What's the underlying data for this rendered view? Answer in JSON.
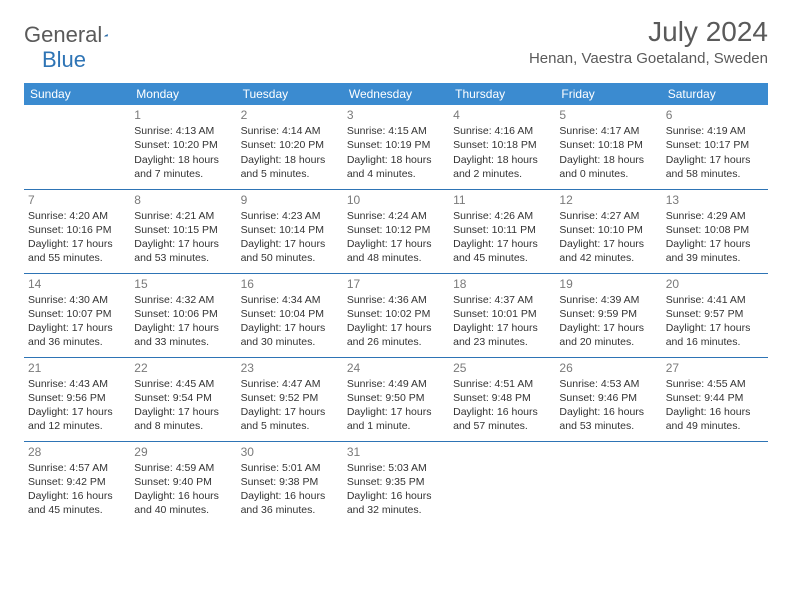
{
  "logo": {
    "text_general": "General",
    "text_blue": "Blue"
  },
  "header": {
    "month_title": "July 2024",
    "location": "Henan, Vaestra Goetaland, Sweden"
  },
  "colors": {
    "header_bg": "#3b8bd0",
    "header_text": "#ffffff",
    "border": "#2e74b5",
    "daynum": "#7a7a7a",
    "body_text": "#333333",
    "logo_gray": "#5a5a5a",
    "logo_blue": "#2e74b5",
    "background": "#ffffff"
  },
  "typography": {
    "month_title_fontsize": 28,
    "location_fontsize": 15,
    "weekday_fontsize": 12,
    "daynum_fontsize": 12,
    "cell_fontsize": 10.5
  },
  "calendar": {
    "type": "table",
    "columns": [
      "Sunday",
      "Monday",
      "Tuesday",
      "Wednesday",
      "Thursday",
      "Friday",
      "Saturday"
    ],
    "weeks": [
      [
        null,
        {
          "day": "1",
          "sunrise": "Sunrise: 4:13 AM",
          "sunset": "Sunset: 10:20 PM",
          "daylight1": "Daylight: 18 hours",
          "daylight2": "and 7 minutes."
        },
        {
          "day": "2",
          "sunrise": "Sunrise: 4:14 AM",
          "sunset": "Sunset: 10:20 PM",
          "daylight1": "Daylight: 18 hours",
          "daylight2": "and 5 minutes."
        },
        {
          "day": "3",
          "sunrise": "Sunrise: 4:15 AM",
          "sunset": "Sunset: 10:19 PM",
          "daylight1": "Daylight: 18 hours",
          "daylight2": "and 4 minutes."
        },
        {
          "day": "4",
          "sunrise": "Sunrise: 4:16 AM",
          "sunset": "Sunset: 10:18 PM",
          "daylight1": "Daylight: 18 hours",
          "daylight2": "and 2 minutes."
        },
        {
          "day": "5",
          "sunrise": "Sunrise: 4:17 AM",
          "sunset": "Sunset: 10:18 PM",
          "daylight1": "Daylight: 18 hours",
          "daylight2": "and 0 minutes."
        },
        {
          "day": "6",
          "sunrise": "Sunrise: 4:19 AM",
          "sunset": "Sunset: 10:17 PM",
          "daylight1": "Daylight: 17 hours",
          "daylight2": "and 58 minutes."
        }
      ],
      [
        {
          "day": "7",
          "sunrise": "Sunrise: 4:20 AM",
          "sunset": "Sunset: 10:16 PM",
          "daylight1": "Daylight: 17 hours",
          "daylight2": "and 55 minutes."
        },
        {
          "day": "8",
          "sunrise": "Sunrise: 4:21 AM",
          "sunset": "Sunset: 10:15 PM",
          "daylight1": "Daylight: 17 hours",
          "daylight2": "and 53 minutes."
        },
        {
          "day": "9",
          "sunrise": "Sunrise: 4:23 AM",
          "sunset": "Sunset: 10:14 PM",
          "daylight1": "Daylight: 17 hours",
          "daylight2": "and 50 minutes."
        },
        {
          "day": "10",
          "sunrise": "Sunrise: 4:24 AM",
          "sunset": "Sunset: 10:12 PM",
          "daylight1": "Daylight: 17 hours",
          "daylight2": "and 48 minutes."
        },
        {
          "day": "11",
          "sunrise": "Sunrise: 4:26 AM",
          "sunset": "Sunset: 10:11 PM",
          "daylight1": "Daylight: 17 hours",
          "daylight2": "and 45 minutes."
        },
        {
          "day": "12",
          "sunrise": "Sunrise: 4:27 AM",
          "sunset": "Sunset: 10:10 PM",
          "daylight1": "Daylight: 17 hours",
          "daylight2": "and 42 minutes."
        },
        {
          "day": "13",
          "sunrise": "Sunrise: 4:29 AM",
          "sunset": "Sunset: 10:08 PM",
          "daylight1": "Daylight: 17 hours",
          "daylight2": "and 39 minutes."
        }
      ],
      [
        {
          "day": "14",
          "sunrise": "Sunrise: 4:30 AM",
          "sunset": "Sunset: 10:07 PM",
          "daylight1": "Daylight: 17 hours",
          "daylight2": "and 36 minutes."
        },
        {
          "day": "15",
          "sunrise": "Sunrise: 4:32 AM",
          "sunset": "Sunset: 10:06 PM",
          "daylight1": "Daylight: 17 hours",
          "daylight2": "and 33 minutes."
        },
        {
          "day": "16",
          "sunrise": "Sunrise: 4:34 AM",
          "sunset": "Sunset: 10:04 PM",
          "daylight1": "Daylight: 17 hours",
          "daylight2": "and 30 minutes."
        },
        {
          "day": "17",
          "sunrise": "Sunrise: 4:36 AM",
          "sunset": "Sunset: 10:02 PM",
          "daylight1": "Daylight: 17 hours",
          "daylight2": "and 26 minutes."
        },
        {
          "day": "18",
          "sunrise": "Sunrise: 4:37 AM",
          "sunset": "Sunset: 10:01 PM",
          "daylight1": "Daylight: 17 hours",
          "daylight2": "and 23 minutes."
        },
        {
          "day": "19",
          "sunrise": "Sunrise: 4:39 AM",
          "sunset": "Sunset: 9:59 PM",
          "daylight1": "Daylight: 17 hours",
          "daylight2": "and 20 minutes."
        },
        {
          "day": "20",
          "sunrise": "Sunrise: 4:41 AM",
          "sunset": "Sunset: 9:57 PM",
          "daylight1": "Daylight: 17 hours",
          "daylight2": "and 16 minutes."
        }
      ],
      [
        {
          "day": "21",
          "sunrise": "Sunrise: 4:43 AM",
          "sunset": "Sunset: 9:56 PM",
          "daylight1": "Daylight: 17 hours",
          "daylight2": "and 12 minutes."
        },
        {
          "day": "22",
          "sunrise": "Sunrise: 4:45 AM",
          "sunset": "Sunset: 9:54 PM",
          "daylight1": "Daylight: 17 hours",
          "daylight2": "and 8 minutes."
        },
        {
          "day": "23",
          "sunrise": "Sunrise: 4:47 AM",
          "sunset": "Sunset: 9:52 PM",
          "daylight1": "Daylight: 17 hours",
          "daylight2": "and 5 minutes."
        },
        {
          "day": "24",
          "sunrise": "Sunrise: 4:49 AM",
          "sunset": "Sunset: 9:50 PM",
          "daylight1": "Daylight: 17 hours",
          "daylight2": "and 1 minute."
        },
        {
          "day": "25",
          "sunrise": "Sunrise: 4:51 AM",
          "sunset": "Sunset: 9:48 PM",
          "daylight1": "Daylight: 16 hours",
          "daylight2": "and 57 minutes."
        },
        {
          "day": "26",
          "sunrise": "Sunrise: 4:53 AM",
          "sunset": "Sunset: 9:46 PM",
          "daylight1": "Daylight: 16 hours",
          "daylight2": "and 53 minutes."
        },
        {
          "day": "27",
          "sunrise": "Sunrise: 4:55 AM",
          "sunset": "Sunset: 9:44 PM",
          "daylight1": "Daylight: 16 hours",
          "daylight2": "and 49 minutes."
        }
      ],
      [
        {
          "day": "28",
          "sunrise": "Sunrise: 4:57 AM",
          "sunset": "Sunset: 9:42 PM",
          "daylight1": "Daylight: 16 hours",
          "daylight2": "and 45 minutes."
        },
        {
          "day": "29",
          "sunrise": "Sunrise: 4:59 AM",
          "sunset": "Sunset: 9:40 PM",
          "daylight1": "Daylight: 16 hours",
          "daylight2": "and 40 minutes."
        },
        {
          "day": "30",
          "sunrise": "Sunrise: 5:01 AM",
          "sunset": "Sunset: 9:38 PM",
          "daylight1": "Daylight: 16 hours",
          "daylight2": "and 36 minutes."
        },
        {
          "day": "31",
          "sunrise": "Sunrise: 5:03 AM",
          "sunset": "Sunset: 9:35 PM",
          "daylight1": "Daylight: 16 hours",
          "daylight2": "and 32 minutes."
        },
        null,
        null,
        null
      ]
    ]
  }
}
